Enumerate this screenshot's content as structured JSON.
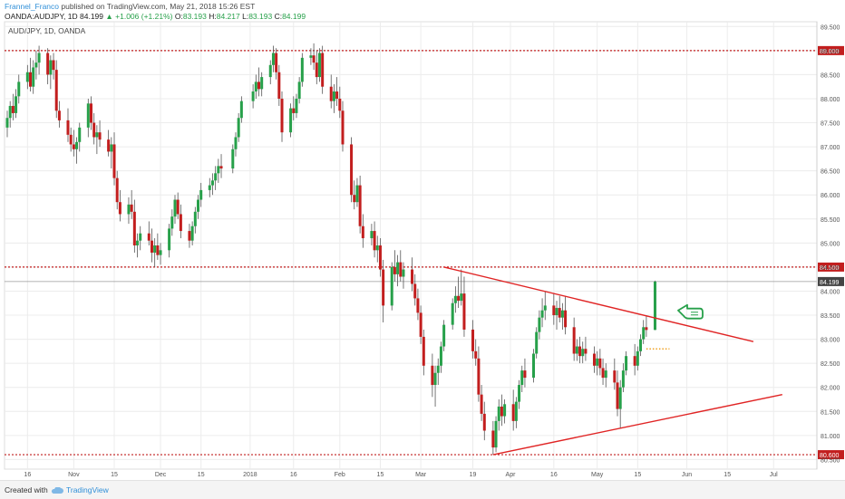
{
  "header": {
    "author": "Frannel_Franco",
    "published_text": "published on TradingView.com, May 21, 2018 15:26 EST"
  },
  "symbol_bar": {
    "symbol": "OANDA:AUDJPY, 1D",
    "last": "84.199",
    "change": "+1.006 (+1.21%)",
    "open_label": "O:",
    "open": "83.193",
    "high_label": "H:",
    "high": "84.217",
    "low_label": "L:",
    "low": "83.193",
    "close_label": "C:",
    "close": "84.199"
  },
  "footer": {
    "created_with": "Created with",
    "brand": "TradingView"
  },
  "colors": {
    "up": "#27a04a",
    "down": "#c21e1e",
    "trendline": "#e02424",
    "level": "#c21e1e",
    "price_label_bg": "#c21e1e",
    "grid": "#ececec",
    "arrow": "#27a04a",
    "dotted_marker": "#f0a020"
  },
  "chart_data": {
    "type": "candlestick",
    "title": "AUD/JPY, 1D, OANDA",
    "instrument": "AUD/JPY",
    "interval": "1D",
    "ylim": [
      80.3,
      89.6
    ],
    "y_ticks": [
      "80.500",
      "81.000",
      "81.500",
      "82.000",
      "82.500",
      "83.000",
      "83.500",
      "84.000",
      "84.500",
      "85.000",
      "85.500",
      "86.000",
      "86.500",
      "87.000",
      "87.500",
      "88.000",
      "88.500",
      "89.000",
      "89.500"
    ],
    "x_ticks": [
      {
        "label": "16",
        "date": "2017-10-16"
      },
      {
        "label": "Nov",
        "date": "2017-11-01"
      },
      {
        "label": "15",
        "date": "2017-11-15"
      },
      {
        "label": "Dec",
        "date": "2017-12-01"
      },
      {
        "label": "15",
        "date": "2017-12-15"
      },
      {
        "label": "2018",
        "date": "2018-01-01"
      },
      {
        "label": "16",
        "date": "2018-01-16"
      },
      {
        "label": "Feb",
        "date": "2018-02-01"
      },
      {
        "label": "15",
        "date": "2018-02-15"
      },
      {
        "label": "Mar",
        "date": "2018-03-01"
      },
      {
        "label": "19",
        "date": "2018-03-19"
      },
      {
        "label": "Apr",
        "date": "2018-04-01"
      },
      {
        "label": "16",
        "date": "2018-04-16"
      },
      {
        "label": "May",
        "date": "2018-05-01"
      },
      {
        "label": "15",
        "date": "2018-05-15"
      },
      {
        "label": "Jun",
        "date": "2018-06-01"
      },
      {
        "label": "15",
        "date": "2018-06-15"
      },
      {
        "label": "Jul",
        "date": "2018-07-01"
      }
    ],
    "x_range": [
      "2017-10-09",
      "2018-07-05"
    ],
    "levels": [
      {
        "price": 89.0,
        "label": "89.000"
      },
      {
        "price": 84.5,
        "label": "84.500"
      },
      {
        "price": 80.6,
        "label": "80.600"
      }
    ],
    "current_price": {
      "price": 84.199,
      "label": "84.199"
    },
    "trendlines": [
      {
        "name": "upper",
        "from": {
          "date": "2018-03-09",
          "price": 84.5
        },
        "to": {
          "date": "2018-06-24",
          "price": 82.95
        }
      },
      {
        "name": "lower",
        "from": {
          "date": "2018-03-26",
          "price": 80.6
        },
        "to": {
          "date": "2018-07-04",
          "price": 81.85
        }
      }
    ],
    "dotted_marker": {
      "from": "2018-05-18",
      "to": "2018-05-26",
      "price": 82.8
    },
    "arrow_annotation": {
      "date": "2018-05-29",
      "price": 83.6,
      "direction": "left"
    },
    "candles": [
      [
        "2017-10-09",
        87.4,
        87.75,
        87.2,
        87.6
      ],
      [
        "2017-10-10",
        87.6,
        87.95,
        87.4,
        87.85
      ],
      [
        "2017-10-11",
        87.85,
        88.1,
        87.55,
        87.7
      ],
      [
        "2017-10-12",
        87.7,
        88.2,
        87.6,
        88.05
      ],
      [
        "2017-10-13",
        88.05,
        88.5,
        87.9,
        88.35
      ],
      [
        "2017-10-16",
        88.35,
        88.7,
        88.2,
        88.55
      ],
      [
        "2017-10-17",
        88.55,
        88.85,
        88.15,
        88.25
      ],
      [
        "2017-10-18",
        88.25,
        88.8,
        88.1,
        88.65
      ],
      [
        "2017-10-19",
        88.65,
        89.0,
        88.4,
        88.75
      ],
      [
        "2017-10-20",
        88.75,
        89.1,
        88.5,
        88.95
      ],
      [
        "2017-10-23",
        88.95,
        89.05,
        88.3,
        88.5
      ],
      [
        "2017-10-24",
        88.5,
        88.9,
        88.2,
        88.8
      ],
      [
        "2017-10-25",
        88.8,
        88.95,
        88.4,
        88.6
      ],
      [
        "2017-10-26",
        88.6,
        88.8,
        87.6,
        87.75
      ],
      [
        "2017-10-27",
        87.75,
        87.95,
        87.4,
        87.55
      ],
      [
        "2017-10-30",
        87.55,
        87.8,
        87.1,
        87.25
      ],
      [
        "2017-10-31",
        87.25,
        87.4,
        86.9,
        87.05
      ],
      [
        "2017-11-01",
        87.05,
        87.35,
        86.8,
        86.95
      ],
      [
        "2017-11-02",
        86.95,
        87.2,
        86.65,
        87.1
      ],
      [
        "2017-11-03",
        87.1,
        87.5,
        86.9,
        87.4
      ],
      [
        "2017-11-06",
        87.4,
        88.0,
        87.2,
        87.9
      ],
      [
        "2017-11-07",
        87.9,
        88.05,
        87.35,
        87.5
      ],
      [
        "2017-11-08",
        87.5,
        87.7,
        87.05,
        87.2
      ],
      [
        "2017-11-09",
        87.2,
        87.45,
        86.85,
        87.3
      ],
      [
        "2017-11-10",
        87.3,
        87.55,
        87.0,
        87.15
      ],
      [
        "2017-11-13",
        87.15,
        87.35,
        86.8,
        86.9
      ],
      [
        "2017-11-14",
        86.9,
        87.2,
        86.55,
        87.05
      ],
      [
        "2017-11-15",
        87.05,
        87.3,
        86.2,
        86.35
      ],
      [
        "2017-11-16",
        86.35,
        86.5,
        85.7,
        85.85
      ],
      [
        "2017-11-17",
        85.85,
        86.1,
        85.45,
        85.6
      ],
      [
        "2017-11-20",
        85.6,
        85.95,
        85.4,
        85.8
      ],
      [
        "2017-11-21",
        85.8,
        86.1,
        85.5,
        85.65
      ],
      [
        "2017-11-22",
        85.65,
        85.9,
        84.8,
        84.95
      ],
      [
        "2017-11-23",
        84.95,
        85.2,
        84.7,
        85.05
      ],
      [
        "2017-11-24",
        85.05,
        85.35,
        84.85,
        85.2
      ],
      [
        "2017-11-27",
        85.2,
        85.45,
        84.95,
        85.05
      ],
      [
        "2017-11-28",
        85.05,
        85.3,
        84.6,
        84.8
      ],
      [
        "2017-11-29",
        84.8,
        85.1,
        84.5,
        84.95
      ],
      [
        "2017-11-30",
        84.95,
        85.2,
        84.65,
        84.75
      ],
      [
        "2017-12-01",
        84.75,
        85.0,
        84.55,
        84.85
      ],
      [
        "2017-12-04",
        84.85,
        85.4,
        84.7,
        85.3
      ],
      [
        "2017-12-05",
        85.3,
        85.7,
        85.15,
        85.55
      ],
      [
        "2017-12-06",
        85.55,
        86.0,
        85.4,
        85.9
      ],
      [
        "2017-12-07",
        85.9,
        86.05,
        85.5,
        85.6
      ],
      [
        "2017-12-08",
        85.6,
        85.8,
        85.1,
        85.25
      ],
      [
        "2017-12-11",
        85.25,
        85.4,
        84.9,
        85.05
      ],
      [
        "2017-12-12",
        85.05,
        85.45,
        84.95,
        85.35
      ],
      [
        "2017-12-13",
        85.35,
        85.75,
        85.2,
        85.65
      ],
      [
        "2017-12-14",
        85.65,
        86.0,
        85.5,
        85.9
      ],
      [
        "2017-12-15",
        85.9,
        86.25,
        85.75,
        86.1
      ],
      [
        "2017-12-18",
        86.1,
        86.35,
        85.95,
        86.2
      ],
      [
        "2017-12-19",
        86.2,
        86.45,
        86.0,
        86.3
      ],
      [
        "2017-12-20",
        86.3,
        86.6,
        86.1,
        86.45
      ],
      [
        "2017-12-21",
        86.45,
        86.75,
        86.25,
        86.6
      ],
      [
        "2017-12-22",
        86.6,
        86.85,
        86.35,
        86.55
      ],
      [
        "2017-12-26",
        86.55,
        87.05,
        86.45,
        86.95
      ],
      [
        "2017-12-27",
        86.95,
        87.3,
        86.8,
        87.2
      ],
      [
        "2017-12-28",
        87.2,
        87.7,
        87.1,
        87.6
      ],
      [
        "2017-12-29",
        87.6,
        88.05,
        87.5,
        87.95
      ],
      [
        "2018-01-02",
        87.95,
        88.3,
        87.8,
        88.15
      ],
      [
        "2018-01-03",
        88.15,
        88.5,
        88.0,
        88.35
      ],
      [
        "2018-01-04",
        88.35,
        88.65,
        88.05,
        88.2
      ],
      [
        "2018-01-05",
        88.2,
        88.55,
        88.05,
        88.45
      ],
      [
        "2018-01-08",
        88.45,
        88.8,
        88.3,
        88.7
      ],
      [
        "2018-01-09",
        88.7,
        89.1,
        88.55,
        88.95
      ],
      [
        "2018-01-10",
        88.95,
        89.05,
        88.4,
        88.55
      ],
      [
        "2018-01-11",
        88.55,
        88.7,
        87.85,
        88.0
      ],
      [
        "2018-01-12",
        88.0,
        88.15,
        87.1,
        87.3
      ],
      [
        "2018-01-15",
        87.3,
        87.9,
        87.2,
        87.8
      ],
      [
        "2018-01-16",
        87.8,
        88.05,
        87.55,
        87.7
      ],
      [
        "2018-01-17",
        87.7,
        88.1,
        87.6,
        88.0
      ],
      [
        "2018-01-18",
        88.0,
        88.45,
        87.9,
        88.35
      ],
      [
        "2018-01-19",
        88.35,
        88.95,
        88.25,
        88.85
      ],
      [
        "2018-01-22",
        88.85,
        89.05,
        88.7,
        88.9
      ],
      [
        "2018-01-23",
        88.9,
        89.15,
        88.6,
        88.75
      ],
      [
        "2018-01-24",
        88.75,
        89.0,
        88.3,
        88.45
      ],
      [
        "2018-01-25",
        88.45,
        89.05,
        88.35,
        88.95
      ],
      [
        "2018-01-26",
        88.95,
        89.1,
        88.1,
        88.25
      ],
      [
        "2018-01-29",
        88.25,
        88.5,
        87.8,
        87.95
      ],
      [
        "2018-01-30",
        87.95,
        88.3,
        87.7,
        88.15
      ],
      [
        "2018-01-31",
        88.15,
        88.45,
        87.85,
        88.0
      ],
      [
        "2018-02-01",
        88.0,
        88.25,
        87.6,
        87.75
      ],
      [
        "2018-02-02",
        87.75,
        87.95,
        86.9,
        87.05
      ],
      [
        "2018-02-05",
        87.05,
        87.2,
        85.85,
        86.0
      ],
      [
        "2018-02-06",
        86.0,
        86.3,
        85.7,
        85.85
      ],
      [
        "2018-02-07",
        85.85,
        86.35,
        85.75,
        86.2
      ],
      [
        "2018-02-08",
        86.2,
        86.4,
        85.2,
        85.35
      ],
      [
        "2018-02-09",
        85.35,
        85.6,
        84.9,
        85.1
      ],
      [
        "2018-02-12",
        85.1,
        85.4,
        84.95,
        85.25
      ],
      [
        "2018-02-13",
        85.25,
        85.45,
        84.7,
        84.85
      ],
      [
        "2018-02-14",
        84.85,
        85.15,
        84.6,
        84.95
      ],
      [
        "2018-02-15",
        84.95,
        85.1,
        84.3,
        84.45
      ],
      [
        "2018-02-16",
        84.45,
        84.65,
        83.35,
        83.7
      ],
      [
        "2018-02-19",
        83.7,
        84.6,
        83.6,
        84.5
      ],
      [
        "2018-02-20",
        84.5,
        84.85,
        84.2,
        84.35
      ],
      [
        "2018-02-21",
        84.35,
        84.75,
        84.1,
        84.6
      ],
      [
        "2018-02-22",
        84.6,
        84.85,
        84.2,
        84.3
      ],
      [
        "2018-02-23",
        84.3,
        84.6,
        84.05,
        84.45
      ],
      [
        "2018-02-26",
        84.45,
        84.7,
        84.0,
        84.15
      ],
      [
        "2018-02-27",
        84.15,
        84.35,
        83.7,
        83.85
      ],
      [
        "2018-02-28",
        83.85,
        84.05,
        83.4,
        83.55
      ],
      [
        "2018-03-01",
        83.55,
        83.7,
        82.9,
        83.05
      ],
      [
        "2018-03-02",
        83.05,
        83.2,
        82.25,
        82.45
      ],
      [
        "2018-03-05",
        82.45,
        82.7,
        81.8,
        82.05
      ],
      [
        "2018-03-06",
        82.05,
        82.45,
        81.6,
        82.3
      ],
      [
        "2018-03-07",
        82.3,
        82.6,
        82.05,
        82.45
      ],
      [
        "2018-03-08",
        82.45,
        82.95,
        82.3,
        82.85
      ],
      [
        "2018-03-09",
        82.85,
        83.4,
        82.75,
        83.3
      ],
      [
        "2018-03-12",
        83.3,
        83.85,
        83.2,
        83.75
      ],
      [
        "2018-03-13",
        83.75,
        84.1,
        83.55,
        83.9
      ],
      [
        "2018-03-14",
        83.9,
        84.3,
        83.65,
        83.8
      ],
      [
        "2018-03-15",
        83.8,
        84.45,
        83.7,
        83.95
      ],
      [
        "2018-03-16",
        83.95,
        84.3,
        83.05,
        83.2
      ],
      [
        "2018-03-19",
        83.2,
        83.4,
        82.6,
        82.75
      ],
      [
        "2018-03-20",
        82.75,
        83.0,
        82.45,
        82.6
      ],
      [
        "2018-03-21",
        82.6,
        82.85,
        81.7,
        81.85
      ],
      [
        "2018-03-22",
        81.85,
        82.05,
        81.3,
        81.45
      ],
      [
        "2018-03-23",
        81.45,
        81.7,
        80.9,
        81.1
      ],
      [
        "2018-03-26",
        81.1,
        81.3,
        80.6,
        80.75
      ],
      [
        "2018-03-27",
        80.75,
        81.4,
        80.65,
        81.3
      ],
      [
        "2018-03-28",
        81.3,
        81.75,
        81.1,
        81.6
      ],
      [
        "2018-03-29",
        81.6,
        81.85,
        81.2,
        81.4
      ],
      [
        "2018-03-30",
        81.4,
        81.75,
        81.25,
        81.65
      ],
      [
        "2018-04-02",
        81.65,
        81.95,
        81.1,
        81.3
      ],
      [
        "2018-04-03",
        81.3,
        81.8,
        81.15,
        81.7
      ],
      [
        "2018-04-04",
        81.7,
        82.15,
        81.55,
        82.05
      ],
      [
        "2018-04-05",
        82.05,
        82.45,
        81.9,
        82.35
      ],
      [
        "2018-04-06",
        82.35,
        82.6,
        82.0,
        82.2
      ],
      [
        "2018-04-09",
        82.2,
        82.8,
        82.1,
        82.7
      ],
      [
        "2018-04-10",
        82.7,
        83.25,
        82.6,
        83.15
      ],
      [
        "2018-04-11",
        83.15,
        83.6,
        83.0,
        83.45
      ],
      [
        "2018-04-12",
        83.45,
        83.85,
        83.25,
        83.6
      ],
      [
        "2018-04-13",
        83.6,
        84.0,
        83.4,
        83.7
      ],
      [
        "2018-04-16",
        83.7,
        83.95,
        83.3,
        83.5
      ],
      [
        "2018-04-17",
        83.5,
        83.8,
        83.2,
        83.65
      ],
      [
        "2018-04-18",
        83.65,
        83.9,
        83.35,
        83.45
      ],
      [
        "2018-04-19",
        83.45,
        83.75,
        83.2,
        83.6
      ],
      [
        "2018-04-20",
        83.6,
        83.9,
        83.1,
        83.25
      ],
      [
        "2018-04-23",
        83.25,
        83.45,
        82.55,
        82.7
      ],
      [
        "2018-04-24",
        82.7,
        83.0,
        82.55,
        82.85
      ],
      [
        "2018-04-25",
        82.85,
        83.05,
        82.5,
        82.65
      ],
      [
        "2018-04-26",
        82.65,
        82.95,
        82.5,
        82.8
      ],
      [
        "2018-04-27",
        82.8,
        83.05,
        82.55,
        82.7
      ],
      [
        "2018-04-30",
        82.7,
        82.85,
        82.3,
        82.45
      ],
      [
        "2018-05-01",
        82.45,
        82.75,
        82.25,
        82.6
      ],
      [
        "2018-05-02",
        82.6,
        82.8,
        82.25,
        82.4
      ],
      [
        "2018-05-03",
        82.4,
        82.6,
        82.05,
        82.2
      ],
      [
        "2018-05-04",
        82.2,
        82.5,
        82.0,
        82.35
      ],
      [
        "2018-05-07",
        82.35,
        82.6,
        81.95,
        82.1
      ],
      [
        "2018-05-08",
        82.1,
        82.35,
        81.4,
        81.55
      ],
      [
        "2018-05-09",
        81.55,
        82.15,
        81.15,
        82.0
      ],
      [
        "2018-05-10",
        82.0,
        82.5,
        81.9,
        82.35
      ],
      [
        "2018-05-11",
        82.35,
        82.75,
        82.25,
        82.65
      ],
      [
        "2018-05-14",
        82.65,
        82.9,
        82.25,
        82.45
      ],
      [
        "2018-05-15",
        82.45,
        82.85,
        82.35,
        82.75
      ],
      [
        "2018-05-16",
        82.75,
        83.1,
        82.65,
        83.0
      ],
      [
        "2018-05-17",
        83.0,
        83.4,
        82.9,
        83.25
      ],
      [
        "2018-05-18",
        83.25,
        83.5,
        83.05,
        83.193
      ],
      [
        "2018-05-21",
        83.193,
        84.217,
        83.193,
        84.199
      ]
    ]
  }
}
